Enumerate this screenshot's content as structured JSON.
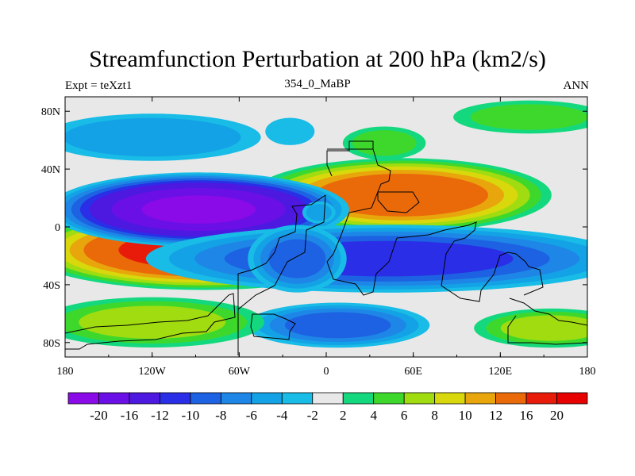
{
  "chart_data": {
    "type": "contour-map",
    "title": "Streamfunction Perturbation at 200 hPa (km2/s)",
    "left_label": "Expt = teXzt1",
    "center_label": "354_0_MaBP",
    "right_label": "ANN",
    "x_range": [
      -180,
      180
    ],
    "y_range": [
      -90,
      90
    ],
    "x_ticks": [
      {
        "value": -180,
        "label": "180"
      },
      {
        "value": -120,
        "label": "120W"
      },
      {
        "value": -60,
        "label": "60W"
      },
      {
        "value": 0,
        "label": "0"
      },
      {
        "value": 60,
        "label": "60E"
      },
      {
        "value": 120,
        "label": "120E"
      },
      {
        "value": 180,
        "label": "180"
      }
    ],
    "y_ticks": [
      {
        "value": 80,
        "label": "80N"
      },
      {
        "value": 40,
        "label": "40N"
      },
      {
        "value": 0,
        "label": "0"
      },
      {
        "value": -40,
        "label": "40S"
      },
      {
        "value": -80,
        "label": "80S"
      }
    ],
    "colorbar_labels": [
      "-20",
      "-16",
      "-12",
      "-10",
      "-8",
      "-6",
      "-4",
      "-2",
      "2",
      "4",
      "6",
      "8",
      "10",
      "12",
      "16",
      "20"
    ],
    "colorbar_colors": [
      "#8a0ae8",
      "#6a10e6",
      "#4d18e0",
      "#2a2ee6",
      "#1c62e2",
      "#1e86e6",
      "#14a2e6",
      "#18bce6",
      "#e8e8e8",
      "#14d87e",
      "#3ed82c",
      "#a0dc10",
      "#d8d80c",
      "#e8a60c",
      "#ea6a0a",
      "#e81a0a",
      "#e60000"
    ],
    "features": [
      {
        "name": "high-subtropical-pacific-south",
        "lon": -85,
        "lat": -16,
        "rx": 125,
        "ry": 28,
        "peak": 17
      },
      {
        "name": "high-asia",
        "lon": 52,
        "lat": 22,
        "rx": 105,
        "ry": 26,
        "peak": 14
      },
      {
        "name": "low-pacific-north",
        "lon": -88,
        "lat": 12,
        "rx": 105,
        "ry": 26,
        "peak": -20
      },
      {
        "name": "low-south-asia-indian",
        "lon": 42,
        "lat": -22,
        "rx": 170,
        "ry": 24,
        "peak": -10
      },
      {
        "name": "low-atlantic-south",
        "lon": -20,
        "lat": -22,
        "rx": 35,
        "ry": 24,
        "peak": -8
      },
      {
        "name": "low-southern-ocean",
        "lon": 8,
        "lat": -68,
        "rx": 65,
        "ry": 16,
        "peak": -8
      },
      {
        "name": "low-north-pacific",
        "lon": -120,
        "lat": 62,
        "rx": 78,
        "ry": 17,
        "peak": -5
      },
      {
        "name": "high-arctic",
        "lon": 140,
        "lat": 76,
        "rx": 55,
        "ry": 12,
        "peak": 4
      },
      {
        "name": "high-south-west",
        "lon": -120,
        "lat": -66,
        "rx": 80,
        "ry": 18,
        "peak": 6
      },
      {
        "name": "high-south-east",
        "lon": 155,
        "lat": -70,
        "rx": 55,
        "ry": 14,
        "peak": 6
      },
      {
        "name": "high-europe",
        "lon": 40,
        "lat": 58,
        "rx": 30,
        "ry": 12,
        "peak": 4
      },
      {
        "name": "low-north-atlantic",
        "lon": -25,
        "lat": 66,
        "rx": 18,
        "ry": 10,
        "peak": -3
      },
      {
        "name": "low-equatorial-west",
        "lon": -5,
        "lat": 10,
        "rx": 12,
        "ry": 8,
        "peak": -4
      }
    ]
  }
}
